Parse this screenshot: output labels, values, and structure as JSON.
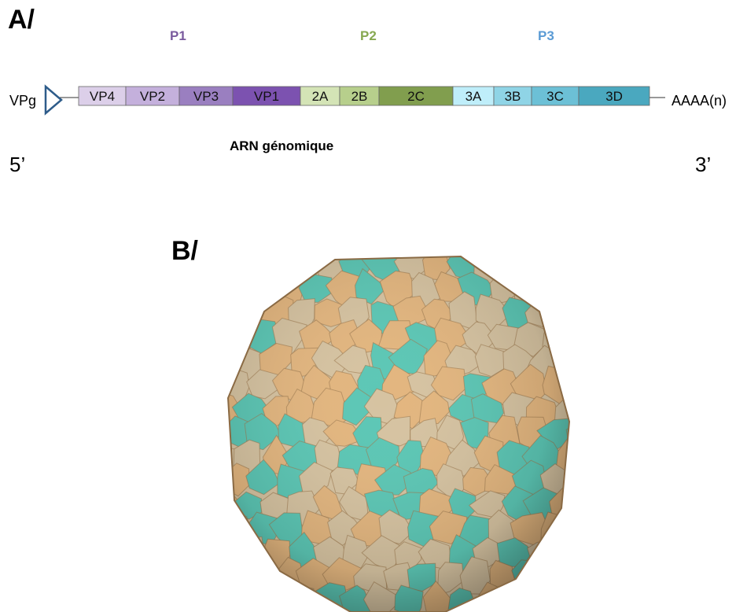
{
  "panel_a": {
    "label": "A/",
    "regions": [
      {
        "name": "P1",
        "color": "#7a5a9e"
      },
      {
        "name": "P2",
        "color": "#86a850"
      },
      {
        "name": "P3",
        "color": "#5b9bd5"
      }
    ],
    "segments": [
      {
        "name": "VP4",
        "region": "P1",
        "color": "#dccfe9"
      },
      {
        "name": "VP2",
        "region": "P1",
        "color": "#c4b0dc"
      },
      {
        "name": "VP3",
        "region": "P1",
        "color": "#9a7fc0"
      },
      {
        "name": "VP1",
        "region": "P1",
        "color": "#7c52b0"
      },
      {
        "name": "2A",
        "region": "P2",
        "color": "#d4e4b6"
      },
      {
        "name": "2B",
        "region": "P2",
        "color": "#b7cf8c"
      },
      {
        "name": "2C",
        "region": "P2",
        "color": "#819e4e"
      },
      {
        "name": "3A",
        "region": "P3",
        "color": "#bfeefa"
      },
      {
        "name": "3B",
        "region": "P3",
        "color": "#8fd4e6"
      },
      {
        "name": "3C",
        "region": "P3",
        "color": "#6cc0d6"
      },
      {
        "name": "3D",
        "region": "P3",
        "color": "#4aa8bf"
      }
    ],
    "left_label": "VPg",
    "right_label": "AAAA(n)",
    "five_prime": "5’",
    "three_prime": "3’",
    "caption": "ARN génomique",
    "vpg_color": "#2e5c8a"
  },
  "panel_b": {
    "label": "B/",
    "capsid_colors": {
      "teal": "#5cc7b5",
      "tan": "#e3b67f",
      "beige": "#d6c3a1"
    }
  }
}
